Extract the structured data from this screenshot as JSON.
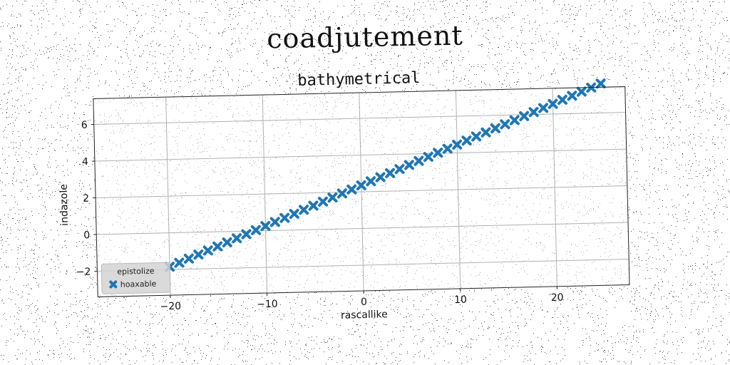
{
  "figure": {
    "suptitle": "coadjutement"
  },
  "chart_data": {
    "type": "scatter",
    "title": "bathymetrical",
    "xlabel": "rascallike",
    "ylabel": "indazole",
    "xlim": [
      -27.5,
      27.5
    ],
    "ylim": [
      -3.4,
      7.4
    ],
    "xticks": [
      -20,
      -10,
      0,
      10,
      20
    ],
    "xtick_labels": [
      "−20",
      "−10",
      "0",
      "10",
      "20"
    ],
    "yticks": [
      -2,
      0,
      2,
      4,
      6
    ],
    "ytick_labels": [
      "−2",
      "0",
      "2",
      "4",
      "6"
    ],
    "grid": true,
    "legend": {
      "title": "epistolize",
      "placement": "lower-left"
    },
    "series": [
      {
        "name": "hoaxable",
        "color": "#1f77b4",
        "marker": "x",
        "x": [
          -20,
          -19,
          -18,
          -17,
          -16,
          -15,
          -14,
          -13,
          -12,
          -11,
          -10,
          -9,
          -8,
          -7,
          -6,
          -5,
          -4,
          -3,
          -2,
          -1,
          0,
          1,
          2,
          3,
          4,
          5,
          6,
          7,
          8,
          9,
          10,
          11,
          12,
          13,
          14,
          15,
          16,
          17,
          18,
          19,
          20,
          21,
          22,
          23,
          24,
          25
        ],
        "y": [
          -1.85,
          -1.64,
          -1.43,
          -1.22,
          -1.01,
          -0.8,
          -0.59,
          -0.38,
          -0.17,
          0.04,
          0.25,
          0.46,
          0.67,
          0.88,
          1.09,
          1.3,
          1.51,
          1.72,
          1.93,
          2.14,
          2.35,
          2.56,
          2.77,
          2.98,
          3.19,
          3.4,
          3.61,
          3.82,
          4.03,
          4.24,
          4.45,
          4.66,
          4.87,
          5.08,
          5.29,
          5.5,
          5.71,
          5.92,
          6.13,
          6.34,
          6.55,
          6.76,
          6.97,
          7.18,
          7.39,
          7.6
        ]
      }
    ]
  }
}
